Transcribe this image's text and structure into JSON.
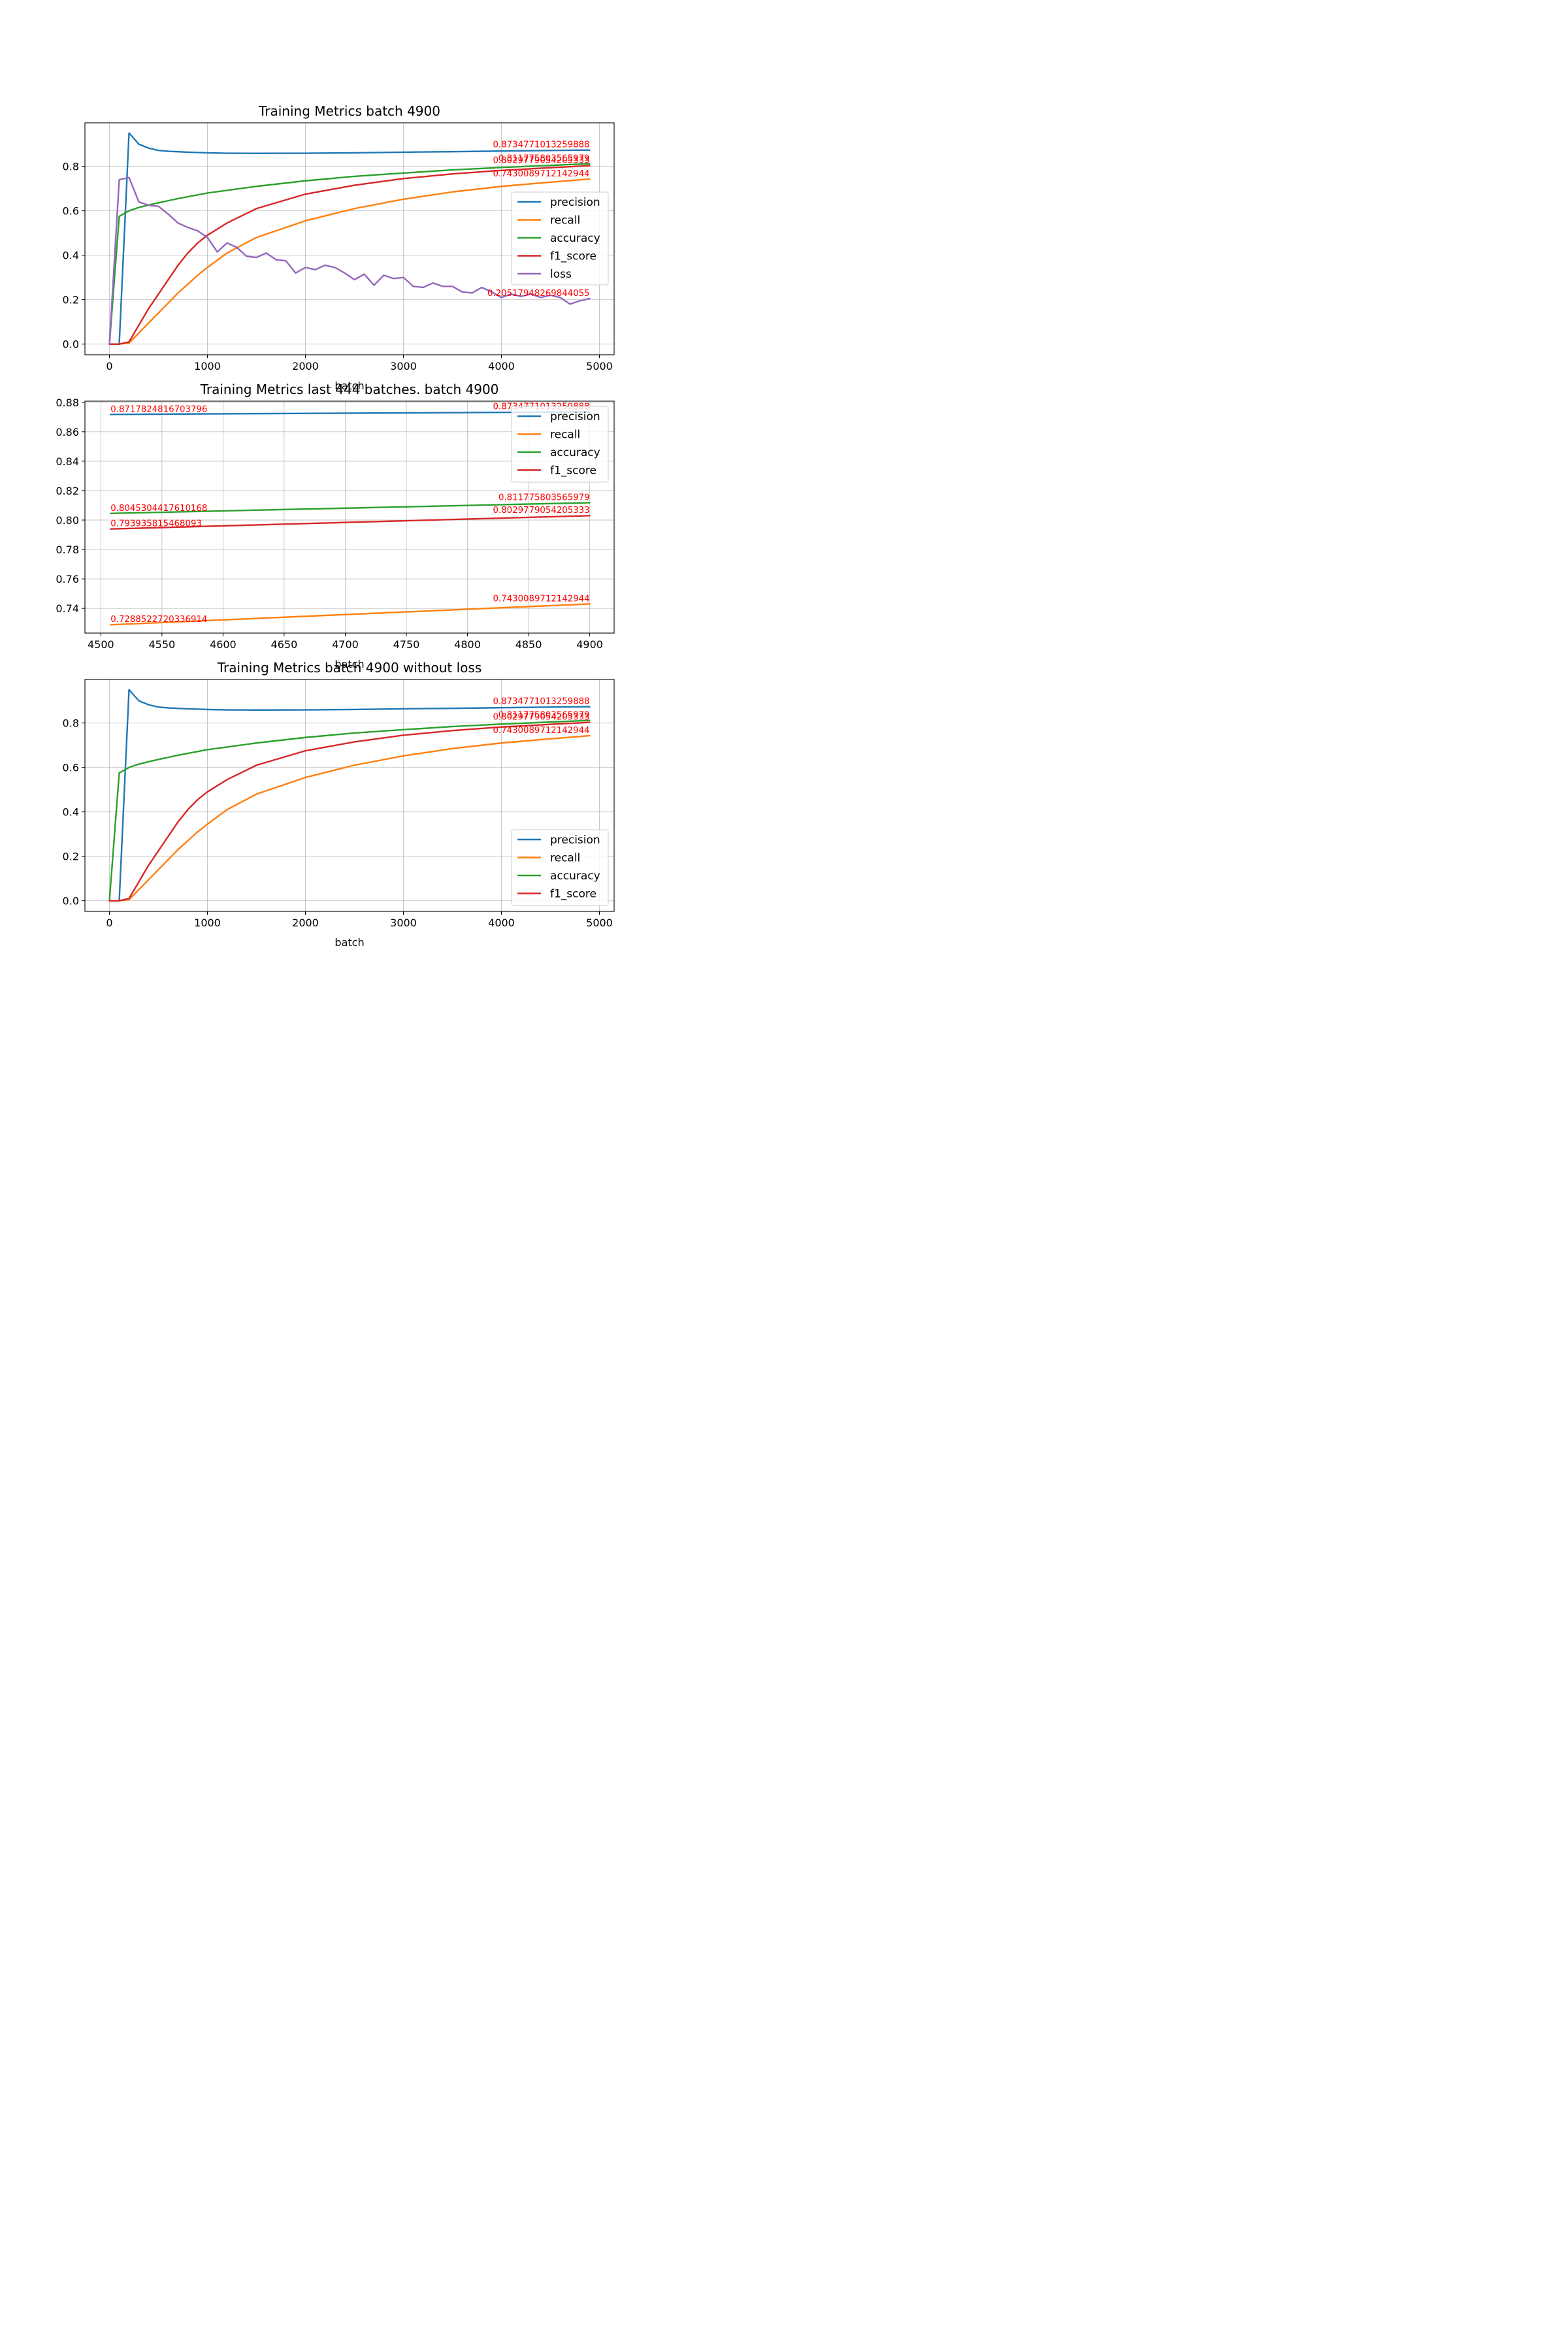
{
  "chart_data": [
    {
      "type": "line",
      "title": "Training Metrics batch 4900",
      "xlabel": "batch",
      "ylabel": "",
      "xlim": [
        -250,
        5150
      ],
      "ylim": [
        -0.048,
        0.996
      ],
      "xticks": [
        0,
        1000,
        2000,
        3000,
        4000,
        5000
      ],
      "yticks": [
        0.0,
        0.2,
        0.4,
        0.6,
        0.8
      ],
      "ytick_labels": [
        "0.0",
        "0.2",
        "0.4",
        "0.6",
        "0.8"
      ],
      "legend": "center right",
      "grid": true,
      "series": [
        {
          "name": "precision",
          "color": "#1f77b4",
          "x": [
            0,
            100,
            200,
            300,
            400,
            500,
            600,
            800,
            1000,
            1200,
            1500,
            2000,
            2500,
            3000,
            3500,
            4000,
            4500,
            4900
          ],
          "y": [
            0,
            0,
            0.95,
            0.9,
            0.882,
            0.872,
            0.868,
            0.864,
            0.861,
            0.859,
            0.8585,
            0.859,
            0.861,
            0.864,
            0.866,
            0.869,
            0.8717,
            0.8735
          ]
        },
        {
          "name": "recall",
          "color": "#ff7f0e",
          "x": [
            0,
            100,
            200,
            300,
            400,
            500,
            600,
            700,
            800,
            900,
            1000,
            1200,
            1500,
            2000,
            2500,
            3000,
            3500,
            4000,
            4500,
            4900
          ],
          "y": [
            0,
            0,
            0.005,
            0.05,
            0.095,
            0.14,
            0.185,
            0.23,
            0.27,
            0.31,
            0.345,
            0.41,
            0.48,
            0.555,
            0.61,
            0.652,
            0.685,
            0.71,
            0.7289,
            0.743
          ]
        },
        {
          "name": "accuracy",
          "color": "#2ca02c",
          "x": [
            0,
            100,
            200,
            300,
            400,
            500,
            700,
            1000,
            1500,
            2000,
            2500,
            3000,
            3500,
            4000,
            4500,
            4900
          ],
          "y": [
            0,
            0.575,
            0.6,
            0.615,
            0.626,
            0.636,
            0.655,
            0.68,
            0.71,
            0.735,
            0.755,
            0.77,
            0.784,
            0.795,
            0.8045,
            0.8118
          ]
        },
        {
          "name": "f1_score",
          "color": "#d62728",
          "x": [
            0,
            100,
            200,
            300,
            400,
            500,
            600,
            700,
            800,
            900,
            1000,
            1200,
            1500,
            2000,
            2500,
            3000,
            3500,
            4000,
            4500,
            4900
          ],
          "y": [
            0,
            0,
            0.01,
            0.085,
            0.16,
            0.225,
            0.29,
            0.355,
            0.41,
            0.455,
            0.49,
            0.545,
            0.61,
            0.675,
            0.715,
            0.745,
            0.766,
            0.782,
            0.7939,
            0.803
          ]
        },
        {
          "name": "loss",
          "color": "#9467bd",
          "x": [
            0,
            100,
            200,
            300,
            400,
            500,
            600,
            700,
            800,
            900,
            1000,
            1100,
            1200,
            1300,
            1400,
            1500,
            1600,
            1700,
            1800,
            1900,
            2000,
            2100,
            2200,
            2300,
            2400,
            2500,
            2600,
            2700,
            2800,
            2900,
            3000,
            3100,
            3200,
            3300,
            3400,
            3500,
            3600,
            3700,
            3800,
            3900,
            4000,
            4100,
            4200,
            4300,
            4400,
            4500,
            4600,
            4700,
            4800,
            4900
          ],
          "y": [
            0,
            0.74,
            0.75,
            0.64,
            0.625,
            0.62,
            0.585,
            0.545,
            0.525,
            0.51,
            0.48,
            0.415,
            0.455,
            0.435,
            0.395,
            0.39,
            0.41,
            0.38,
            0.375,
            0.32,
            0.345,
            0.335,
            0.355,
            0.345,
            0.32,
            0.29,
            0.315,
            0.265,
            0.31,
            0.295,
            0.3,
            0.26,
            0.255,
            0.275,
            0.26,
            0.26,
            0.235,
            0.23,
            0.255,
            0.235,
            0.21,
            0.225,
            0.215,
            0.225,
            0.21,
            0.22,
            0.21,
            0.18,
            0.195,
            0.205
          ]
        }
      ],
      "annotations": [
        {
          "text": "0.8734771013259888",
          "x": 4900,
          "y": 0.8735,
          "color": "#ff0000"
        },
        {
          "text": "0.811775803565979",
          "x": 4900,
          "y": 0.8118,
          "color": "#ff0000"
        },
        {
          "text": "0.8029779054205333",
          "x": 4900,
          "y": 0.803,
          "color": "#ff0000"
        },
        {
          "text": "0.7430089712142944",
          "x": 4900,
          "y": 0.743,
          "color": "#ff0000"
        },
        {
          "text": "0.20517948269844055",
          "x": 4900,
          "y": 0.205,
          "color": "#ff0000"
        }
      ]
    },
    {
      "type": "line",
      "title": "Training Metrics last 444 batches. batch 4900",
      "xlabel": "batch",
      "ylabel": "",
      "xlim": [
        4487,
        4920
      ],
      "ylim": [
        0.7232,
        0.8808
      ],
      "xticks": [
        4500,
        4550,
        4600,
        4650,
        4700,
        4750,
        4800,
        4850,
        4900
      ],
      "yticks": [
        0.74,
        0.76,
        0.78,
        0.8,
        0.82,
        0.84,
        0.86,
        0.88
      ],
      "ytick_labels": [
        "0.74",
        "0.76",
        "0.78",
        "0.80",
        "0.82",
        "0.84",
        "0.86",
        "0.88"
      ],
      "legend": "upper right",
      "grid": true,
      "series": [
        {
          "name": "precision",
          "color": "#1f77b4",
          "x": [
            4508,
            4900
          ],
          "y": [
            0.8717824816703796,
            0.8734771013259888
          ]
        },
        {
          "name": "recall",
          "color": "#ff7f0e",
          "x": [
            4508,
            4900
          ],
          "y": [
            0.7288522720336914,
            0.7430089712142944
          ]
        },
        {
          "name": "accuracy",
          "color": "#2ca02c",
          "x": [
            4508,
            4900
          ],
          "y": [
            0.8045304417610168,
            0.811775803565979
          ]
        },
        {
          "name": "f1_score",
          "color": "#d62728",
          "x": [
            4508,
            4900
          ],
          "y": [
            0.793935815468093,
            0.8029779054205333
          ]
        }
      ],
      "annotations": [
        {
          "text": "0.8717824816703796",
          "x": 4508,
          "y": 0.8718,
          "color": "#ff0000",
          "align": "start"
        },
        {
          "text": "0.8734771013259888",
          "x": 4900,
          "y": 0.8735,
          "color": "#ff0000"
        },
        {
          "text": "0.811775803565979",
          "x": 4900,
          "y": 0.8118,
          "color": "#ff0000"
        },
        {
          "text": "0.8045304417610168",
          "x": 4508,
          "y": 0.8045,
          "color": "#ff0000",
          "align": "start"
        },
        {
          "text": "0.8029779054205333",
          "x": 4900,
          "y": 0.803,
          "color": "#ff0000"
        },
        {
          "text": "0.793935815468093",
          "x": 4508,
          "y": 0.7939,
          "color": "#ff0000",
          "align": "start"
        },
        {
          "text": "0.7430089712142944",
          "x": 4900,
          "y": 0.743,
          "color": "#ff0000"
        },
        {
          "text": "0.7288522720336914",
          "x": 4508,
          "y": 0.7289,
          "color": "#ff0000",
          "align": "start"
        }
      ]
    },
    {
      "type": "line",
      "title": "Training Metrics batch 4900 without loss",
      "xlabel": "batch",
      "ylabel": "",
      "xlim": [
        -250,
        5150
      ],
      "ylim": [
        -0.048,
        0.996
      ],
      "xticks": [
        0,
        1000,
        2000,
        3000,
        4000,
        5000
      ],
      "yticks": [
        0.0,
        0.2,
        0.4,
        0.6,
        0.8
      ],
      "ytick_labels": [
        "0.0",
        "0.2",
        "0.4",
        "0.6",
        "0.8"
      ],
      "legend": "lower right",
      "grid": true,
      "series": [
        {
          "name": "precision",
          "color": "#1f77b4",
          "x": [
            0,
            100,
            200,
            300,
            400,
            500,
            600,
            800,
            1000,
            1200,
            1500,
            2000,
            2500,
            3000,
            3500,
            4000,
            4500,
            4900
          ],
          "y": [
            0,
            0,
            0.95,
            0.9,
            0.882,
            0.872,
            0.868,
            0.864,
            0.861,
            0.859,
            0.8585,
            0.859,
            0.861,
            0.864,
            0.866,
            0.869,
            0.8717,
            0.8735
          ]
        },
        {
          "name": "recall",
          "color": "#ff7f0e",
          "x": [
            0,
            100,
            200,
            300,
            400,
            500,
            600,
            700,
            800,
            900,
            1000,
            1200,
            1500,
            2000,
            2500,
            3000,
            3500,
            4000,
            4500,
            4900
          ],
          "y": [
            0,
            0,
            0.005,
            0.05,
            0.095,
            0.14,
            0.185,
            0.23,
            0.27,
            0.31,
            0.345,
            0.41,
            0.48,
            0.555,
            0.61,
            0.652,
            0.685,
            0.71,
            0.7289,
            0.743
          ]
        },
        {
          "name": "accuracy",
          "color": "#2ca02c",
          "x": [
            0,
            100,
            200,
            300,
            400,
            500,
            700,
            1000,
            1500,
            2000,
            2500,
            3000,
            3500,
            4000,
            4500,
            4900
          ],
          "y": [
            0,
            0.575,
            0.6,
            0.615,
            0.626,
            0.636,
            0.655,
            0.68,
            0.71,
            0.735,
            0.755,
            0.77,
            0.784,
            0.795,
            0.8045,
            0.8118
          ]
        },
        {
          "name": "f1_score",
          "color": "#d62728",
          "x": [
            0,
            100,
            200,
            300,
            400,
            500,
            600,
            700,
            800,
            900,
            1000,
            1200,
            1500,
            2000,
            2500,
            3000,
            3500,
            4000,
            4500,
            4900
          ],
          "y": [
            0,
            0,
            0.01,
            0.085,
            0.16,
            0.225,
            0.29,
            0.355,
            0.41,
            0.455,
            0.49,
            0.545,
            0.61,
            0.675,
            0.715,
            0.745,
            0.766,
            0.782,
            0.7939,
            0.803
          ]
        }
      ],
      "annotations": [
        {
          "text": "0.8734771013259888",
          "x": 4900,
          "y": 0.8735,
          "color": "#ff0000"
        },
        {
          "text": "0.811775803565979",
          "x": 4900,
          "y": 0.8118,
          "color": "#ff0000"
        },
        {
          "text": "0.8029779054205333",
          "x": 4900,
          "y": 0.803,
          "color": "#ff0000"
        },
        {
          "text": "0.7430089712142944",
          "x": 4900,
          "y": 0.743,
          "color": "#ff0000"
        }
      ]
    }
  ]
}
